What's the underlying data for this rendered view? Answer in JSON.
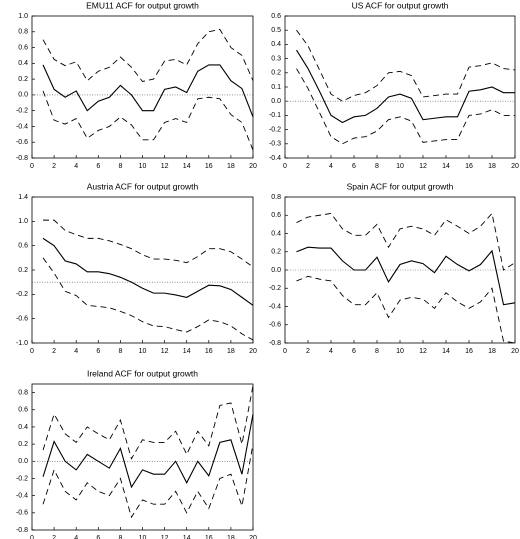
{
  "chart_data": [
    {
      "type": "line",
      "title": "EMU11 ACF for output growth",
      "x": [
        1,
        2,
        3,
        4,
        5,
        6,
        7,
        8,
        9,
        10,
        11,
        12,
        13,
        14,
        15,
        16,
        17,
        18,
        19,
        20
      ],
      "xlim": [
        0,
        20
      ],
      "xticks": [
        0,
        2,
        4,
        6,
        8,
        10,
        12,
        14,
        16,
        18,
        20
      ],
      "ylim": [
        -0.8,
        1.0
      ],
      "yticks": [
        {
          "value": 1,
          "label": "1.0"
        },
        0.8,
        0.6,
        0.4,
        0.2,
        {
          "value": 0,
          "label": "0.0"
        },
        -0.2,
        -0.4,
        -0.6,
        -0.8
      ],
      "series": [
        {
          "color": "#000",
          "dash": false,
          "values": [
            0.38,
            0.07,
            -0.03,
            0.05,
            -0.2,
            -0.08,
            -0.03,
            0.12,
            0.0,
            -0.2,
            -0.2,
            0.07,
            0.1,
            0.03,
            0.3,
            0.38,
            0.38,
            0.18,
            0.08,
            -0.28
          ]
        },
        {
          "color": "#000",
          "dash": true,
          "values": [
            0.7,
            0.45,
            0.37,
            0.42,
            0.18,
            0.3,
            0.35,
            0.48,
            0.35,
            0.17,
            0.2,
            0.43,
            0.45,
            0.38,
            0.65,
            0.8,
            0.83,
            0.6,
            0.5,
            0.18
          ]
        },
        {
          "color": "#000",
          "dash": true,
          "values": [
            0.05,
            -0.32,
            -0.37,
            -0.3,
            -0.55,
            -0.45,
            -0.4,
            -0.28,
            -0.38,
            -0.57,
            -0.57,
            -0.35,
            -0.3,
            -0.35,
            -0.05,
            -0.03,
            -0.05,
            -0.25,
            -0.35,
            -0.7
          ]
        }
      ]
    },
    {
      "type": "line",
      "title": "US ACF for output growth",
      "x": [
        1,
        2,
        3,
        4,
        5,
        6,
        7,
        8,
        9,
        10,
        11,
        12,
        13,
        14,
        15,
        16,
        17,
        18,
        19,
        20
      ],
      "xlim": [
        0,
        20
      ],
      "xticks": [
        0,
        2,
        4,
        6,
        8,
        10,
        12,
        14,
        16,
        18,
        20
      ],
      "ylim": [
        -0.4,
        0.6
      ],
      "yticks": [
        0.6,
        0.5,
        0.4,
        0.3,
        0.2,
        0.1,
        {
          "value": 0,
          "label": "0.0"
        },
        -0.1,
        -0.2,
        -0.3,
        -0.4
      ],
      "series": [
        {
          "color": "#000",
          "dash": false,
          "values": [
            0.36,
            0.23,
            0.07,
            -0.1,
            -0.15,
            -0.11,
            -0.1,
            -0.05,
            0.03,
            0.05,
            0.02,
            -0.13,
            -0.12,
            -0.11,
            -0.11,
            0.07,
            0.08,
            0.1,
            0.06,
            0.06
          ]
        },
        {
          "color": "#000",
          "dash": true,
          "values": [
            0.5,
            0.39,
            0.22,
            0.05,
            0.0,
            0.04,
            0.06,
            0.11,
            0.2,
            0.21,
            0.18,
            0.03,
            0.04,
            0.05,
            0.05,
            0.24,
            0.25,
            0.27,
            0.23,
            0.22
          ]
        },
        {
          "color": "#000",
          "dash": true,
          "values": [
            0.23,
            0.09,
            -0.08,
            -0.25,
            -0.3,
            -0.26,
            -0.25,
            -0.21,
            -0.13,
            -0.11,
            -0.14,
            -0.29,
            -0.28,
            -0.27,
            -0.27,
            -0.1,
            -0.09,
            -0.06,
            -0.1,
            -0.1
          ]
        }
      ]
    },
    {
      "type": "line",
      "title": "Austria ACF for output growth",
      "x": [
        1,
        2,
        3,
        4,
        5,
        6,
        7,
        8,
        9,
        10,
        11,
        12,
        13,
        14,
        15,
        16,
        17,
        18,
        19,
        20
      ],
      "xlim": [
        0,
        20
      ],
      "xticks": [
        0,
        2,
        4,
        6,
        8,
        10,
        12,
        14,
        16,
        18,
        20
      ],
      "ylim": [
        -1.0,
        1.4
      ],
      "yticks": [
        1.4,
        {
          "value": 1,
          "label": "1.0"
        },
        0.6,
        0.2,
        -0.2,
        -0.6,
        {
          "value": -1,
          "label": "-1.0"
        }
      ],
      "series": [
        {
          "color": "#000",
          "dash": false,
          "values": [
            0.72,
            0.6,
            0.35,
            0.3,
            0.17,
            0.17,
            0.14,
            0.08,
            0.0,
            -0.1,
            -0.18,
            -0.18,
            -0.21,
            -0.25,
            -0.15,
            -0.05,
            -0.06,
            -0.12,
            -0.25,
            -0.38
          ]
        },
        {
          "color": "#000",
          "dash": true,
          "values": [
            1.02,
            1.02,
            0.85,
            0.78,
            0.72,
            0.72,
            0.68,
            0.62,
            0.55,
            0.45,
            0.38,
            0.38,
            0.36,
            0.32,
            0.42,
            0.55,
            0.55,
            0.5,
            0.38,
            0.25
          ]
        },
        {
          "color": "#000",
          "dash": true,
          "values": [
            0.4,
            0.15,
            -0.15,
            -0.22,
            -0.38,
            -0.4,
            -0.42,
            -0.48,
            -0.55,
            -0.65,
            -0.72,
            -0.73,
            -0.78,
            -0.82,
            -0.73,
            -0.62,
            -0.65,
            -0.72,
            -0.85,
            -0.95
          ]
        }
      ]
    },
    {
      "type": "line",
      "title": "Spain ACF for output growth",
      "x": [
        1,
        2,
        3,
        4,
        5,
        6,
        7,
        8,
        9,
        10,
        11,
        12,
        13,
        14,
        15,
        16,
        17,
        18,
        19,
        20
      ],
      "xlim": [
        0,
        20
      ],
      "xticks": [
        0,
        2,
        4,
        6,
        8,
        10,
        12,
        14,
        16,
        18,
        20
      ],
      "ylim": [
        -0.8,
        0.8
      ],
      "yticks": [
        0.8,
        0.6,
        0.4,
        0.2,
        {
          "value": 0,
          "label": "0.0"
        },
        -0.2,
        -0.4,
        -0.6,
        -0.8
      ],
      "series": [
        {
          "color": "#000",
          "dash": false,
          "values": [
            0.2,
            0.25,
            0.24,
            0.24,
            0.1,
            0.0,
            0.0,
            0.14,
            -0.13,
            0.06,
            0.1,
            0.07,
            -0.03,
            0.15,
            0.06,
            -0.01,
            0.06,
            0.21,
            -0.38,
            -0.36
          ]
        },
        {
          "color": "#000",
          "dash": true,
          "values": [
            0.52,
            0.58,
            0.6,
            0.62,
            0.45,
            0.38,
            0.38,
            0.5,
            0.25,
            0.45,
            0.48,
            0.45,
            0.38,
            0.55,
            0.48,
            0.4,
            0.48,
            0.62,
            0.0,
            0.08
          ]
        },
        {
          "color": "#000",
          "dash": true,
          "values": [
            -0.12,
            -0.07,
            -0.1,
            -0.12,
            -0.28,
            -0.38,
            -0.38,
            -0.25,
            -0.52,
            -0.33,
            -0.3,
            -0.32,
            -0.42,
            -0.25,
            -0.35,
            -0.42,
            -0.35,
            -0.2,
            -0.78,
            -0.8
          ]
        }
      ]
    },
    {
      "type": "line",
      "title": "Ireland ACF for output growth",
      "x": [
        1,
        2,
        3,
        4,
        5,
        6,
        7,
        8,
        9,
        10,
        11,
        12,
        13,
        14,
        15,
        16,
        17,
        18,
        19,
        20
      ],
      "xlim": [
        0,
        20
      ],
      "xticks": [
        0,
        2,
        4,
        6,
        8,
        10,
        12,
        14,
        16,
        18,
        20
      ],
      "ylim": [
        -0.8,
        0.9
      ],
      "yticks": [
        0.8,
        0.6,
        0.4,
        0.2,
        {
          "value": 0,
          "label": "0.0"
        },
        -0.2,
        -0.4,
        -0.6,
        -0.8
      ],
      "series": [
        {
          "color": "#000",
          "dash": false,
          "values": [
            -0.18,
            0.23,
            0.0,
            -0.1,
            0.08,
            0.0,
            -0.08,
            0.15,
            -0.3,
            -0.1,
            -0.15,
            -0.15,
            0.0,
            -0.25,
            0.0,
            -0.17,
            0.22,
            0.25,
            -0.15,
            0.55
          ]
        },
        {
          "color": "#000",
          "dash": true,
          "values": [
            0.13,
            0.55,
            0.32,
            0.22,
            0.4,
            0.32,
            0.25,
            0.48,
            0.03,
            0.25,
            0.22,
            0.22,
            0.35,
            0.08,
            0.35,
            0.18,
            0.65,
            0.68,
            0.2,
            0.88
          ]
        },
        {
          "color": "#000",
          "dash": true,
          "values": [
            -0.5,
            -0.1,
            -0.35,
            -0.45,
            -0.25,
            -0.35,
            -0.4,
            -0.2,
            -0.65,
            -0.45,
            -0.5,
            -0.5,
            -0.35,
            -0.6,
            -0.35,
            -0.55,
            -0.2,
            -0.15,
            -0.52,
            0.2
          ]
        }
      ]
    }
  ]
}
